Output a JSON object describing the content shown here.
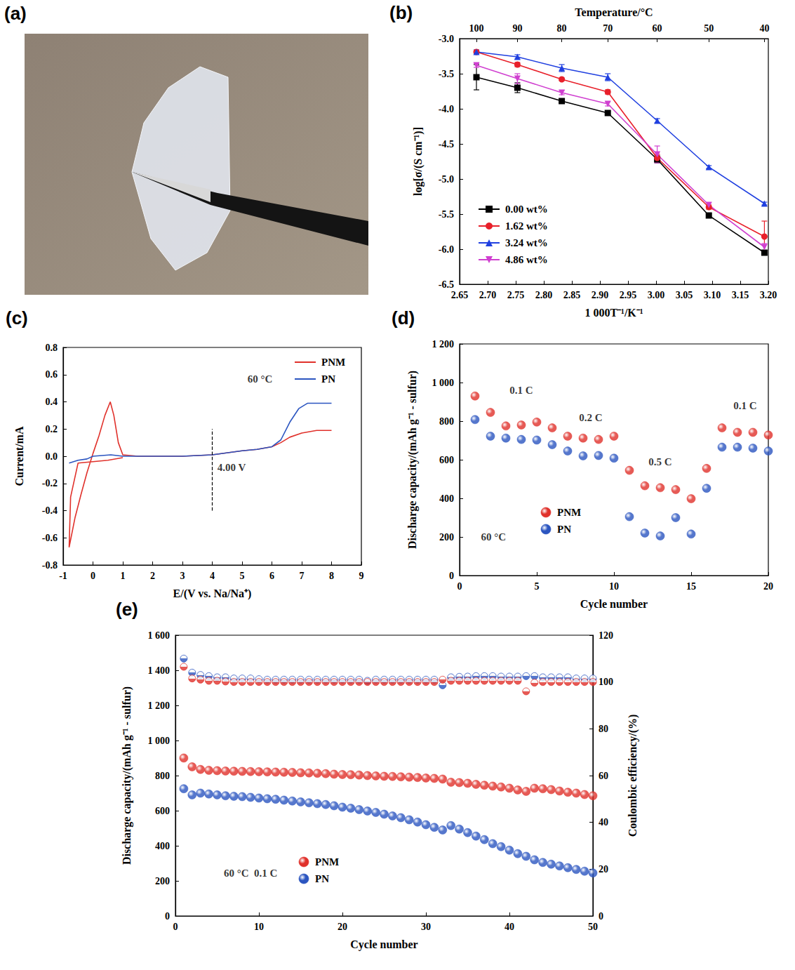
{
  "photo": {
    "panel": "(a)"
  },
  "chart_data": [
    {
      "panel": "(b)",
      "type": "line",
      "xlabel": "1 000T⁻¹/K⁻¹",
      "x2label": "Temperature/°C",
      "ylabel": "log[σ/(S cm⁻¹)]",
      "x": [
        2.68,
        2.753,
        2.832,
        2.914,
        3.002,
        3.094,
        3.193
      ],
      "xlim": [
        2.65,
        3.2
      ],
      "xticks": [
        2.65,
        {
          "value": 2.7,
          "label": "2.70"
        },
        2.75,
        {
          "value": 2.8,
          "label": "2.80"
        },
        2.85,
        {
          "value": 2.9,
          "label": "2.90"
        },
        2.95,
        {
          "value": 3.0,
          "label": "3.00"
        },
        3.05,
        {
          "value": 3.1,
          "label": "3.10"
        },
        3.15,
        {
          "value": 3.2,
          "label": "3.20"
        }
      ],
      "x2ticks": [
        {
          "value": 2.68,
          "label": "100"
        },
        {
          "value": 2.753,
          "label": "90"
        },
        {
          "value": 2.832,
          "label": "80"
        },
        {
          "value": 2.914,
          "label": "70"
        },
        {
          "value": 3.002,
          "label": "60"
        },
        {
          "value": 3.094,
          "label": "50"
        },
        {
          "value": 3.193,
          "label": "40"
        }
      ],
      "ylim": [
        -6.5,
        -3.0
      ],
      "yticks": [
        -6.5,
        {
          "value": -6.0,
          "label": "-6.0"
        },
        -5.5,
        {
          "value": -5.0,
          "label": "-5.0"
        },
        -4.5,
        {
          "value": -4.0,
          "label": "-4.0"
        },
        -3.5,
        {
          "value": -3.0,
          "label": "-3.0"
        }
      ],
      "grid": false,
      "legend": "lower left",
      "series": [
        {
          "name": "0.00 wt%",
          "color": "#000000",
          "marker": "square",
          "values": [
            -3.55,
            -3.7,
            -3.89,
            -4.06,
            -4.72,
            -5.52,
            -6.05
          ],
          "errors": [
            0.18,
            0.07,
            0.02,
            0.02,
            0.05,
            0.03,
            0.03
          ]
        },
        {
          "name": "1.62 wt%",
          "color": "#e8202a",
          "marker": "circle",
          "values": [
            -3.19,
            -3.37,
            -3.58,
            -3.76,
            -4.7,
            -5.4,
            -5.82
          ],
          "errors": [
            0.02,
            0.03,
            0.02,
            0.03,
            0.05,
            0.03,
            0.22
          ]
        },
        {
          "name": "3.24 wt%",
          "color": "#2040e0",
          "marker": "triangle",
          "values": [
            -3.19,
            -3.26,
            -3.42,
            -3.55,
            -4.17,
            -4.83,
            -5.35
          ],
          "errors": [
            0.03,
            0.03,
            0.05,
            0.05,
            0.03,
            0.02,
            0.02
          ]
        },
        {
          "name": "4.86 wt%",
          "color": "#d040d0",
          "marker": "inverted_triangle",
          "values": [
            -3.38,
            -3.57,
            -3.77,
            -3.93,
            -4.65,
            -5.37,
            -5.97
          ],
          "errors": [
            0.03,
            0.07,
            0.03,
            0.03,
            0.12,
            0.03,
            0.05
          ]
        }
      ]
    },
    {
      "panel": "(c)",
      "type": "line",
      "xlabel": "E/(V vs. Na/Na⁺)",
      "ylabel": "Current/mA",
      "xlim": [
        -1,
        9
      ],
      "xticks": [
        -1,
        0,
        1,
        2,
        3,
        4,
        5,
        6,
        7,
        8,
        9
      ],
      "ylim": [
        -0.8,
        0.8
      ],
      "yticks": [
        -0.8,
        -0.6,
        -0.4,
        -0.2,
        {
          "value": 0,
          "label": "0.0"
        },
        0.2,
        0.4,
        0.6,
        0.8
      ],
      "grid": false,
      "legend": "upper right",
      "annotations": [
        {
          "text": "60 °C",
          "x": 5.6,
          "y": 0.57
        },
        {
          "text": "4.00 V",
          "x": 4.65,
          "y": -0.08
        }
      ],
      "reference_line": {
        "x": [
          4,
          4
        ],
        "y": [
          -0.4,
          0.2
        ],
        "line_style": "dashed"
      },
      "series": [
        {
          "name": "PNM",
          "color": "#e0312b",
          "x": [
            1.0,
            0.5,
            0,
            -0.5,
            -0.75,
            -0.8,
            -0.6,
            -0.4,
            -0.2,
            0,
            0.2,
            0.4,
            0.58,
            0.7,
            0.85,
            1.0,
            1.5,
            2,
            3,
            4,
            5,
            5.5,
            6,
            6.3,
            6.6,
            7,
            7.5,
            8
          ],
          "values": [
            -0.01,
            -0.03,
            -0.04,
            -0.05,
            -0.3,
            -0.67,
            -0.45,
            -0.28,
            -0.12,
            0.02,
            0.15,
            0.3,
            0.4,
            0.3,
            0.1,
            0.01,
            0,
            0,
            0,
            0.01,
            0.04,
            0.05,
            0.07,
            0.1,
            0.14,
            0.17,
            0.19,
            0.19
          ]
        },
        {
          "name": "PN",
          "color": "#2b55c0",
          "x": [
            -0.8,
            -0.5,
            -0.2,
            0,
            0.3,
            0.6,
            1,
            2,
            3,
            4,
            5,
            5.5,
            6,
            6.3,
            6.6,
            6.9,
            7.2,
            7.6,
            8
          ],
          "values": [
            -0.05,
            -0.03,
            -0.02,
            0,
            0.005,
            0.01,
            0,
            0,
            0,
            0.01,
            0.04,
            0.05,
            0.07,
            0.12,
            0.25,
            0.35,
            0.39,
            0.39,
            0.39
          ]
        }
      ]
    },
    {
      "panel": "(d)",
      "type": "scatter",
      "xlabel": "Cycle number",
      "ylabel": "Discharge capacity/(mAh g⁻¹ - sulfur)",
      "x": [
        1,
        2,
        3,
        4,
        5,
        6,
        7,
        8,
        9,
        10,
        11,
        12,
        13,
        14,
        15,
        16,
        17,
        18,
        19,
        20
      ],
      "xlim": [
        0,
        20
      ],
      "xticks": [
        0,
        5,
        10,
        15,
        20
      ],
      "ylim": [
        0,
        1200
      ],
      "yticks": [
        0,
        200,
        400,
        600,
        800,
        {
          "value": 1000,
          "label": "1 000"
        },
        {
          "value": 1200,
          "label": "1 200"
        }
      ],
      "grid": false,
      "legend": "lower left",
      "annotations": [
        {
          "text": "0.1 C",
          "x": 4,
          "y": 960
        },
        {
          "text": "0.2 C",
          "x": 8.5,
          "y": 820
        },
        {
          "text": "0.5 C",
          "x": 13,
          "y": 590
        },
        {
          "text": "0.1 C",
          "x": 18.5,
          "y": 880
        },
        {
          "text": "60 °C",
          "x": 2.2,
          "y": 200
        }
      ],
      "series": [
        {
          "name": "PNM",
          "color": "#e0312b",
          "marker": "circle",
          "values": [
            930,
            845,
            775,
            780,
            795,
            765,
            722,
            712,
            705,
            722,
            545,
            465,
            455,
            445,
            398,
            555,
            765,
            742,
            742,
            728
          ]
        },
        {
          "name": "PN",
          "color": "#2b55c0",
          "marker": "circle",
          "values": [
            808,
            722,
            712,
            705,
            702,
            678,
            645,
            620,
            622,
            608,
            305,
            220,
            205,
            300,
            215,
            452,
            665,
            665,
            660,
            645
          ]
        }
      ]
    },
    {
      "panel": "(e)",
      "type": "scatter",
      "xlabel": "Cycle number",
      "ylabel": "Discharge capacity/(mAh g⁻¹ - sulfur)",
      "y2label": "Coulombic efficiency/(%)",
      "x": [
        1,
        2,
        3,
        4,
        5,
        6,
        7,
        8,
        9,
        10,
        11,
        12,
        13,
        14,
        15,
        16,
        17,
        18,
        19,
        20,
        21,
        22,
        23,
        24,
        25,
        26,
        27,
        28,
        29,
        30,
        31,
        32,
        33,
        34,
        35,
        36,
        37,
        38,
        39,
        40,
        41,
        42,
        43,
        44,
        45,
        46,
        47,
        48,
        49,
        50
      ],
      "xlim": [
        0,
        50
      ],
      "xticks": [
        0,
        10,
        20,
        30,
        40,
        50
      ],
      "ylim": [
        0,
        1600
      ],
      "yticks": [
        0,
        200,
        400,
        600,
        800,
        {
          "value": 1000,
          "label": "1 000"
        },
        {
          "value": 1200,
          "label": "1 200"
        },
        {
          "value": 1400,
          "label": "1 400"
        },
        {
          "value": 1600,
          "label": "1 600"
        }
      ],
      "y2lim": [
        0,
        120
      ],
      "y2ticks": [
        0,
        20,
        40,
        60,
        80,
        100,
        120
      ],
      "grid": false,
      "legend": "lower left",
      "annotations": [
        {
          "text": "60 °C  0.1 C",
          "x": 9,
          "y": 245
        }
      ],
      "series": [
        {
          "name": "PNM",
          "color": "#e0312b",
          "marker": "circle",
          "values": [
            900,
            850,
            835,
            830,
            828,
            826,
            825,
            824,
            823,
            822,
            821,
            820,
            819,
            818,
            816,
            815,
            813,
            811,
            808,
            806,
            805,
            803,
            800,
            798,
            796,
            795,
            793,
            791,
            789,
            786,
            784,
            780,
            762,
            760,
            756,
            750,
            745,
            740,
            735,
            728,
            718,
            710,
            728,
            725,
            720,
            712,
            705,
            700,
            692,
            685
          ]
        },
        {
          "name": "PN",
          "color": "#2b55c0",
          "marker": "circle",
          "values": [
            725,
            690,
            700,
            695,
            690,
            685,
            682,
            680,
            676,
            672,
            668,
            665,
            660,
            655,
            650,
            645,
            640,
            635,
            628,
            620,
            614,
            606,
            598,
            590,
            580,
            570,
            560,
            548,
            535,
            520,
            505,
            490,
            515,
            495,
            475,
            455,
            435,
            412,
            395,
            375,
            355,
            340,
            320,
            305,
            295,
            285,
            275,
            265,
            255,
            245
          ]
        },
        {
          "name": "PN",
          "color": "#2b55c0",
          "marker": "half_circle",
          "axis": "y2",
          "values": [
            110,
            104,
            103,
            102.5,
            102,
            102,
            101.5,
            101.5,
            101.5,
            101.2,
            101,
            101,
            101,
            101,
            101,
            101,
            101,
            101,
            101,
            101,
            101,
            101,
            100.5,
            101,
            101,
            101,
            101,
            101,
            101,
            101,
            101,
            98.6,
            102,
            102.2,
            102.3,
            102.5,
            102.5,
            102.5,
            102.3,
            102.3,
            102.3,
            102.5,
            102.5,
            102,
            102,
            102,
            102,
            101.5,
            101.5,
            101.5
          ]
        },
        {
          "name": "PNM",
          "color": "#e0312b",
          "marker": "half_circle",
          "axis": "y2",
          "values": [
            106.5,
            101.5,
            101,
            100.5,
            100.5,
            100.2,
            100,
            100,
            100,
            100,
            100,
            100,
            100,
            100,
            100,
            100,
            100,
            100,
            100,
            100,
            100,
            100,
            100,
            100,
            100,
            100,
            100,
            100,
            100,
            100,
            100,
            101,
            100.5,
            100.5,
            100.5,
            100.5,
            100.5,
            100.5,
            100.5,
            100.5,
            100.5,
            96,
            99.7,
            100,
            100,
            100,
            100,
            100,
            100,
            100
          ]
        }
      ]
    }
  ]
}
